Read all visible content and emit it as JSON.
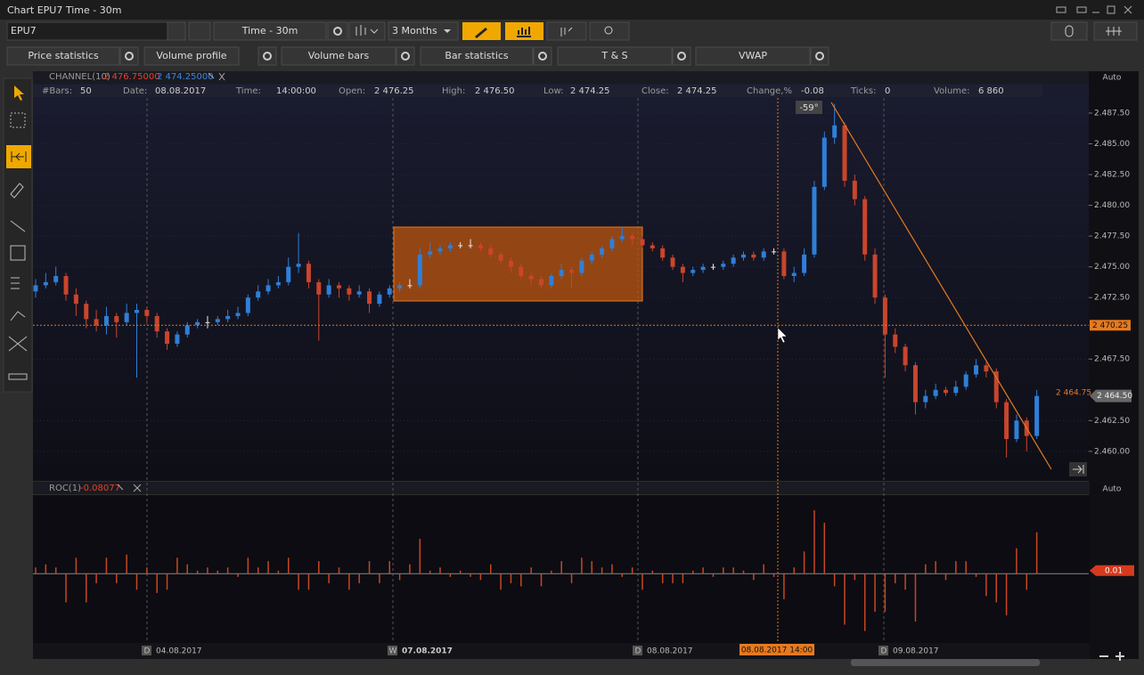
{
  "window": {
    "title": "Chart EPU7 Time - 30m"
  },
  "toolbar": {
    "symbol": "EPU7",
    "timeframe": "Time - 30m",
    "range": "3 Months"
  },
  "tabs": [
    "Price statistics",
    "Volume profile",
    "Volume bars",
    "Bar statistics",
    "T & S",
    "VWAP"
  ],
  "chart_data": {
    "type": "candlestick",
    "up_color": "#2f7fd8",
    "down_color": "#c9452c",
    "flat_color": "#e8e8e8",
    "indicator": {
      "name": "CHANNEL(10)",
      "upper": {
        "value": 2476.75,
        "label": "2 476.75000"
      },
      "lower": {
        "value": 2474.25,
        "label": "2 474.25000"
      }
    },
    "info": [
      {
        "label": "#Bars:",
        "value": 50
      },
      {
        "label": "Date:",
        "value": "08.08.2017"
      },
      {
        "label": "Time:",
        "value": "14:00:00"
      },
      {
        "label": "Open:",
        "value": "2 476.25"
      },
      {
        "label": "High:",
        "value": "2 476.50"
      },
      {
        "label": "Low:",
        "value": "2 474.25"
      },
      {
        "label": "Close:",
        "value": "2 474.25"
      },
      {
        "label": "Change,%",
        "value": -0.08
      },
      {
        "label": "Ticks:",
        "value": 0
      },
      {
        "label": "Volume:",
        "value": "6 860"
      }
    ],
    "scale_mode": "Auto",
    "ylim": [
      2457.6,
      2490.9
    ],
    "yticks": [
      {
        "value": 2487.5,
        "label": "2.487.50"
      },
      {
        "value": 2485,
        "label": "2.485.00"
      },
      {
        "value": 2482.5,
        "label": "2.482.50"
      },
      {
        "value": 2480,
        "label": "2.480.00"
      },
      {
        "value": 2477.5,
        "label": "2.477.50"
      },
      {
        "value": 2475,
        "label": "2.475.00"
      },
      {
        "value": 2472.5,
        "label": "2.472.50"
      },
      {
        "value": 2467.5,
        "label": "2.467.50"
      },
      {
        "value": 2462.5,
        "label": "2.462.50"
      },
      {
        "value": 2460,
        "label": "2.460.00"
      }
    ],
    "crosshair": {
      "value": 2470.25,
      "label": "2 470.25"
    },
    "last_price": {
      "value": 2464.5,
      "label": "2 464.50"
    },
    "channel_value": {
      "value": 2464.75,
      "label": "2 464.75"
    },
    "angle_label": "-59°",
    "crosshair_time": "08.08.2017 14:00",
    "xlabels": [
      {
        "badge": "D",
        "text": "04.08.2017"
      },
      {
        "badge": "W",
        "text": "07.08.2017"
      },
      {
        "badge": "D",
        "text": "08.08.2017"
      },
      {
        "badge": "D",
        "text": "09.08.2017"
      }
    ],
    "candles": [
      [
        2473,
        2474,
        2472.5,
        2473.5
      ],
      [
        2473.5,
        2474.5,
        2473.25,
        2473.75
      ],
      [
        2473.75,
        2475,
        2473.5,
        2474.25
      ],
      [
        2474.25,
        2474.5,
        2472.25,
        2472.75
      ],
      [
        2472.75,
        2473.25,
        2471,
        2472
      ],
      [
        2472,
        2472.25,
        2470,
        2470.75
      ],
      [
        2470.75,
        2471.5,
        2469.75,
        2470.25
      ],
      [
        2470.25,
        2471.75,
        2469.5,
        2471
      ],
      [
        2471,
        2471.25,
        2469.25,
        2470.5
      ],
      [
        2470.5,
        2472,
        2470.25,
        2471.25
      ],
      [
        2471.25,
        2472,
        2466,
        2471.5
      ],
      [
        2471.5,
        2471.75,
        2470.5,
        2471
      ],
      [
        2471,
        2471.25,
        2469.25,
        2469.75
      ],
      [
        2469.75,
        2470,
        2468.25,
        2468.75
      ],
      [
        2468.75,
        2469.75,
        2468.5,
        2469.5
      ],
      [
        2469.5,
        2470.5,
        2469.25,
        2470.25
      ],
      [
        2470.25,
        2470.75,
        2470,
        2470.5
      ],
      [
        2470.5,
        2471,
        2470,
        2470.5
      ],
      [
        2470.5,
        2471,
        2470.25,
        2470.75
      ],
      [
        2470.75,
        2471.5,
        2470.5,
        2471
      ],
      [
        2471,
        2471.75,
        2470.75,
        2471.25
      ],
      [
        2471.25,
        2472.75,
        2471,
        2472.5
      ],
      [
        2472.5,
        2473.5,
        2472.25,
        2473
      ],
      [
        2473,
        2474,
        2472.75,
        2473.5
      ],
      [
        2473.5,
        2474.25,
        2473.25,
        2473.75
      ],
      [
        2473.75,
        2475.75,
        2473.5,
        2475
      ],
      [
        2475,
        2477.75,
        2474.5,
        2475.25
      ],
      [
        2475.25,
        2475.5,
        2473.25,
        2473.75
      ],
      [
        2473.75,
        2474,
        2469,
        2472.75
      ],
      [
        2472.75,
        2474,
        2472.5,
        2473.5
      ],
      [
        2473.5,
        2473.75,
        2472.5,
        2473.25
      ],
      [
        2473.25,
        2473.5,
        2472.25,
        2472.75
      ],
      [
        2472.75,
        2473.5,
        2472.5,
        2473
      ],
      [
        2473,
        2473.25,
        2471.25,
        2472
      ],
      [
        2472,
        2473,
        2471.75,
        2472.75
      ],
      [
        2472.75,
        2473.5,
        2472.5,
        2473.25
      ],
      [
        2473.25,
        2473.75,
        2473,
        2473.5
      ],
      [
        2473.5,
        2474,
        2473.25,
        2473.5
      ],
      [
        2473.5,
        2476.5,
        2473.25,
        2476
      ],
      [
        2476,
        2477,
        2475.75,
        2476.25
      ],
      [
        2476.25,
        2476.75,
        2476,
        2476.5
      ],
      [
        2476.5,
        2477,
        2476.25,
        2476.75
      ],
      [
        2476.75,
        2477,
        2476.5,
        2476.75
      ],
      [
        2476.75,
        2477.25,
        2476.5,
        2476.75
      ],
      [
        2476.75,
        2477,
        2476.25,
        2476.5
      ],
      [
        2476.5,
        2476.75,
        2475.75,
        2476
      ],
      [
        2476,
        2476.25,
        2475.25,
        2475.5
      ],
      [
        2475.5,
        2475.75,
        2474.5,
        2475
      ],
      [
        2475,
        2475.25,
        2474,
        2474.25
      ],
      [
        2474.25,
        2474.5,
        2473.5,
        2474
      ],
      [
        2474,
        2474.25,
        2473.25,
        2473.5
      ],
      [
        2473.5,
        2474.5,
        2473.25,
        2474.25
      ],
      [
        2474.25,
        2475.25,
        2474,
        2474.75
      ],
      [
        2474.75,
        2475,
        2473.25,
        2474.5
      ],
      [
        2474.5,
        2475.75,
        2474.25,
        2475.5
      ],
      [
        2475.5,
        2476.25,
        2475.25,
        2476
      ],
      [
        2476,
        2476.75,
        2475.75,
        2476.5
      ],
      [
        2476.5,
        2477.5,
        2476.25,
        2477.25
      ],
      [
        2477.25,
        2478.25,
        2477,
        2477.5
      ],
      [
        2477.5,
        2477.75,
        2476.75,
        2477.25
      ],
      [
        2477.25,
        2477.5,
        2476.5,
        2476.75
      ],
      [
        2476.75,
        2477,
        2476.25,
        2476.5
      ],
      [
        2476.5,
        2476.75,
        2475.5,
        2475.75
      ],
      [
        2475.75,
        2476,
        2474.75,
        2475
      ],
      [
        2475,
        2475.25,
        2473.75,
        2474.5
      ],
      [
        2474.5,
        2475,
        2474.25,
        2474.75
      ],
      [
        2474.75,
        2475.25,
        2474.5,
        2475
      ],
      [
        2475,
        2475.25,
        2474.75,
        2475
      ],
      [
        2475,
        2475.5,
        2474.75,
        2475.25
      ],
      [
        2475.25,
        2476,
        2475,
        2475.75
      ],
      [
        2475.75,
        2476.25,
        2475.5,
        2476
      ],
      [
        2476,
        2476.25,
        2475.5,
        2475.75
      ],
      [
        2475.75,
        2476.5,
        2475.5,
        2476.25
      ],
      [
        2476.25,
        2476.5,
        2476,
        2476.25
      ],
      [
        2476.25,
        2476.5,
        2474,
        2474.25
      ],
      [
        2474.25,
        2475,
        2473.75,
        2474.5
      ],
      [
        2474.5,
        2476.5,
        2474.25,
        2476
      ],
      [
        2476,
        2482,
        2475.75,
        2481.5
      ],
      [
        2481.5,
        2486,
        2481.25,
        2485.5
      ],
      [
        2485.5,
        2488.25,
        2485,
        2486.5
      ],
      [
        2486.5,
        2486.75,
        2481.5,
        2482
      ],
      [
        2482,
        2482.5,
        2480,
        2480.5
      ],
      [
        2480.5,
        2480.75,
        2475.5,
        2476
      ],
      [
        2476,
        2476.5,
        2472,
        2472.5
      ],
      [
        2472.5,
        2472.75,
        2466,
        2469.5
      ],
      [
        2469.5,
        2470,
        2468,
        2468.5
      ],
      [
        2468.5,
        2468.75,
        2466.5,
        2467
      ],
      [
        2467,
        2467.25,
        2463,
        2464
      ],
      [
        2464,
        2465,
        2463.5,
        2464.5
      ],
      [
        2464.5,
        2465.5,
        2464.25,
        2465
      ],
      [
        2465,
        2465.25,
        2464.5,
        2464.75
      ],
      [
        2464.75,
        2465.75,
        2464.5,
        2465.25
      ],
      [
        2465.25,
        2466.5,
        2465,
        2466.25
      ],
      [
        2466.25,
        2467.5,
        2466,
        2467
      ],
      [
        2467,
        2467.25,
        2466,
        2466.5
      ],
      [
        2466.5,
        2466.75,
        2463.5,
        2464
      ],
      [
        2464,
        2464.25,
        2459.5,
        2461
      ],
      [
        2461,
        2463,
        2460.75,
        2462.5
      ],
      [
        2462.5,
        2462.75,
        2460,
        2461.25
      ],
      [
        2461.25,
        2465,
        2461,
        2464.5
      ]
    ],
    "roc": {
      "name": "ROC(1)",
      "value": -0.08077,
      "color": "#c9461f",
      "scale_mode": "Auto",
      "marker": 0.01,
      "ylim": [
        -0.22,
        0.25
      ],
      "values": [
        0.02,
        0.03,
        0.02,
        -0.091,
        0.051,
        -0.091,
        -0.03,
        0.051,
        -0.03,
        0.061,
        -0.051,
        0.02,
        -0.061,
        -0.051,
        0.051,
        0.03,
        0.01,
        0.02,
        0.01,
        0.02,
        -0.01,
        0.051,
        0.02,
        0.04,
        0.01,
        0.051,
        -0.051,
        -0.051,
        0.04,
        -0.03,
        0.02,
        -0.051,
        -0.03,
        0.04,
        -0.03,
        0.04,
        -0.02,
        0.03,
        0.111,
        0.01,
        0.02,
        -0.01,
        0.01,
        -0.01,
        -0.02,
        0.03,
        -0.051,
        -0.03,
        -0.04,
        0.02,
        -0.04,
        0.01,
        0.04,
        -0.03,
        0.051,
        0.04,
        0.02,
        0.03,
        -0.01,
        0.02,
        -0.051,
        0.01,
        -0.03,
        -0.03,
        -0.03,
        0.01,
        0.02,
        -0.01,
        0.02,
        0.02,
        0.01,
        -0.02,
        0.03,
        -0.01,
        -0.081,
        0.02,
        0.071,
        0.202,
        0.162,
        -0.04,
        -0.162,
        -0.02,
        -0.182,
        -0.121,
        -0.121,
        -0.03,
        -0.051,
        -0.152,
        0.03,
        0.04,
        -0.02,
        0.04,
        0.04,
        -0.01,
        -0.071,
        -0.091,
        -0.132,
        0.081,
        -0.051,
        0.132
      ]
    }
  }
}
